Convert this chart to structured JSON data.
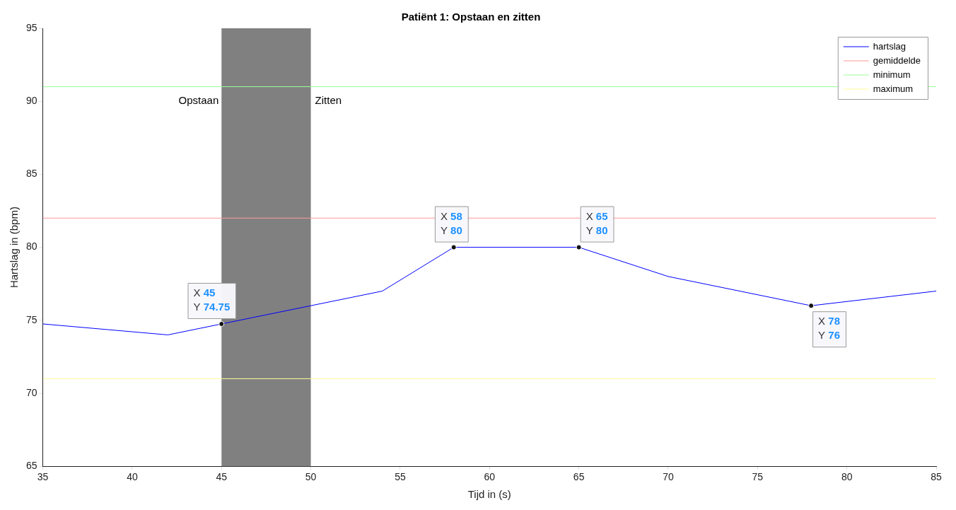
{
  "chart_data": {
    "type": "line",
    "title": "Patiënt 1: Opstaan en zitten",
    "xlabel": "Tijd in (s)",
    "ylabel": "Hartslag in (bpm)",
    "xlim": [
      35,
      85
    ],
    "xticks": [
      35,
      40,
      45,
      50,
      55,
      60,
      65,
      70,
      75,
      80,
      85
    ],
    "ylim": [
      65,
      95
    ],
    "yticks": [
      65,
      70,
      75,
      80,
      85,
      90,
      95
    ],
    "grid": false,
    "legend": "top right",
    "marker": "none",
    "line_style": "solid",
    "series": [
      {
        "name": "hartslag",
        "color": "#0000ff",
        "x": [
          35,
          42,
          45,
          50,
          54,
          58,
          65,
          70,
          78,
          85
        ],
        "values": [
          74.75,
          74,
          74.75,
          76,
          77,
          80,
          80,
          78,
          76,
          77
        ]
      },
      {
        "name": "gemiddelde",
        "color": "#ff9999",
        "x": [
          35,
          85
        ],
        "values": [
          82,
          82
        ]
      },
      {
        "name": "minimum",
        "color": "#99ff99",
        "x": [
          35,
          85
        ],
        "values": [
          91,
          91
        ]
      },
      {
        "name": "maximum",
        "color": "#ffff99",
        "x": [
          35,
          85
        ],
        "values": [
          71,
          71
        ]
      }
    ],
    "bands": [
      {
        "axis": "x",
        "from": 45,
        "to": 50,
        "color": "#808080"
      }
    ],
    "annotations": [
      {
        "text": "Opstaan",
        "x": 45,
        "y": 90
      },
      {
        "text": "Zitten",
        "x": 50,
        "y": 90
      },
      {
        "text": "X 45\nY 74.75",
        "x": 45,
        "y": 74.75
      },
      {
        "text": "X 58\nY 80",
        "x": 58,
        "y": 80
      },
      {
        "text": "X 65\nY 80",
        "x": 65,
        "y": 80
      },
      {
        "text": "X 78\nY 76",
        "x": 78,
        "y": 76
      }
    ]
  }
}
